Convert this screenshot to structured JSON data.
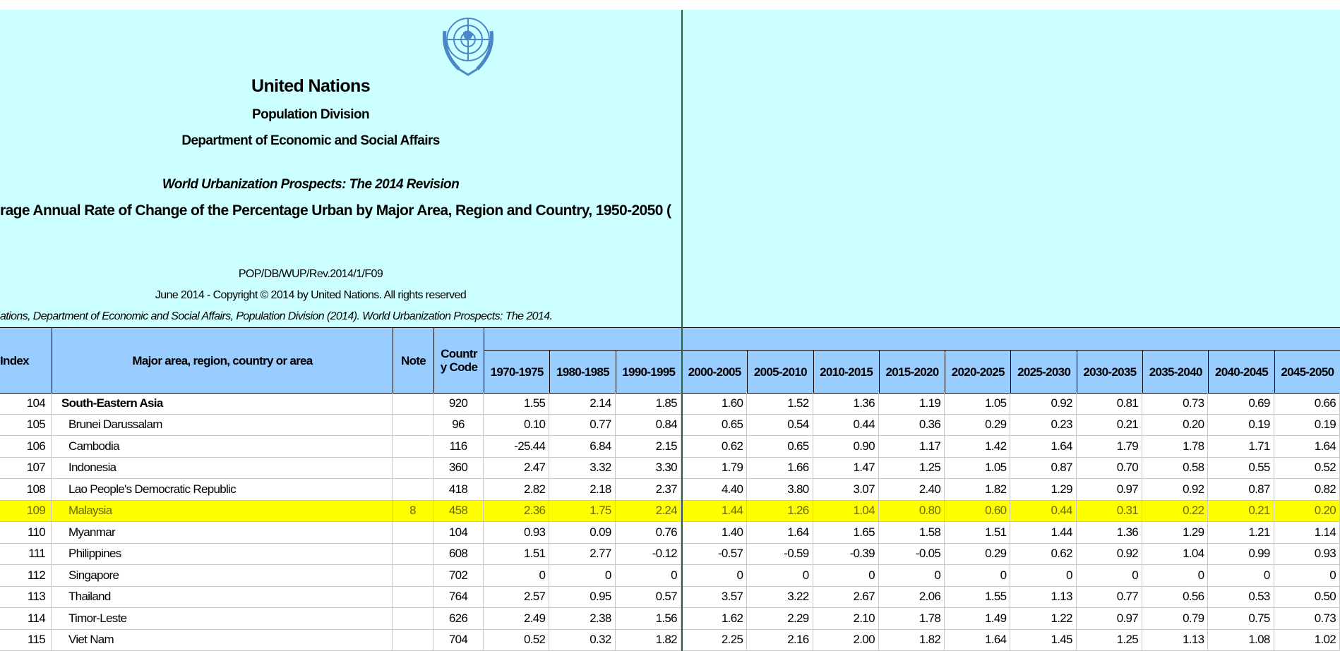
{
  "header": {
    "title": "United Nations",
    "division": "Population Division",
    "department": "Department of Economic and Social Affairs",
    "publication": "World Urbanization Prospects: The 2014 Revision",
    "table_title": "rage Annual Rate of Change of the Percentage Urban by Major Area, Region and Country, 1950-2050 (",
    "code": "POP/DB/WUP/Rev.2014/1/F09",
    "copyright": "June 2014 - Copyright © 2014 by United Nations. All rights reserved",
    "citation": "ations, Department of Economic and Social Affairs, Population Division (2014). World Urbanization Prospects: The 2014."
  },
  "table": {
    "columns": {
      "index": "Index",
      "name": "Major area, region, country or area",
      "note": "Note",
      "code": [
        "Countr",
        "y Code"
      ],
      "periods": [
        "1970-1975",
        "1980-1985",
        "1990-1995",
        "2000-2005",
        "2005-2010",
        "2010-2015",
        "2015-2020",
        "2020-2025",
        "2025-2030",
        "2030-2035",
        "2035-2040",
        "2040-2045",
        "2045-2050"
      ]
    },
    "rows": [
      {
        "index": "104",
        "name": "South-Eastern Asia",
        "code": "920",
        "values": [
          "1.55",
          "2.14",
          "1.85",
          "1.60",
          "1.52",
          "1.36",
          "1.19",
          "1.05",
          "0.92",
          "0.81",
          "0.73",
          "0.69",
          "0.66"
        ]
      },
      {
        "index": "105",
        "name": "Brunei Darussalam",
        "code": "96",
        "values": [
          "0.10",
          "0.77",
          "0.84",
          "0.65",
          "0.54",
          "0.44",
          "0.36",
          "0.29",
          "0.23",
          "0.21",
          "0.20",
          "0.19",
          "0.19"
        ]
      },
      {
        "index": "106",
        "name": "Cambodia",
        "code": "116",
        "values": [
          "-25.44",
          "6.84",
          "2.15",
          "0.62",
          "0.65",
          "0.90",
          "1.17",
          "1.42",
          "1.64",
          "1.79",
          "1.78",
          "1.71",
          "1.64"
        ]
      },
      {
        "index": "107",
        "name": "Indonesia",
        "code": "360",
        "values": [
          "2.47",
          "3.32",
          "3.30",
          "1.79",
          "1.66",
          "1.47",
          "1.25",
          "1.05",
          "0.87",
          "0.70",
          "0.58",
          "0.55",
          "0.52"
        ]
      },
      {
        "index": "108",
        "name": "Lao People's Democratic Republic",
        "code": "418",
        "values": [
          "2.82",
          "2.18",
          "2.37",
          "4.40",
          "3.80",
          "3.07",
          "2.40",
          "1.82",
          "1.29",
          "0.97",
          "0.92",
          "0.87",
          "0.82"
        ]
      },
      {
        "index": "109",
        "name": "Malaysia",
        "note": "8",
        "code": "458",
        "values": [
          "2.36",
          "1.75",
          "2.24",
          "1.44",
          "1.26",
          "1.04",
          "0.80",
          "0.60",
          "0.44",
          "0.31",
          "0.22",
          "0.21",
          "0.20"
        ]
      },
      {
        "index": "110",
        "name": "Myanmar",
        "code": "104",
        "values": [
          "0.93",
          "0.09",
          "0.76",
          "1.40",
          "1.64",
          "1.65",
          "1.58",
          "1.51",
          "1.44",
          "1.36",
          "1.29",
          "1.21",
          "1.14"
        ]
      },
      {
        "index": "111",
        "name": "Philippines",
        "code": "608",
        "values": [
          "1.51",
          "2.77",
          "-0.12",
          "-0.57",
          "-0.59",
          "-0.39",
          "-0.05",
          "0.29",
          "0.62",
          "0.92",
          "1.04",
          "0.99",
          "0.93"
        ]
      },
      {
        "index": "112",
        "name": "Singapore",
        "code": "702",
        "values": [
          "0",
          "0",
          "0",
          "0",
          "0",
          "0",
          "0",
          "0",
          "0",
          "0",
          "0",
          "0",
          "0"
        ]
      },
      {
        "index": "113",
        "name": "Thailand",
        "code": "764",
        "values": [
          "2.57",
          "0.95",
          "0.57",
          "3.57",
          "3.22",
          "2.67",
          "2.06",
          "1.55",
          "1.13",
          "0.77",
          "0.56",
          "0.53",
          "0.50"
        ]
      },
      {
        "index": "114",
        "name": "Timor-Leste",
        "code": "626",
        "values": [
          "2.49",
          "2.38",
          "1.56",
          "1.62",
          "2.29",
          "2.10",
          "1.78",
          "1.49",
          "1.22",
          "0.97",
          "0.79",
          "0.75",
          "0.73"
        ]
      },
      {
        "index": "115",
        "name": "Viet Nam",
        "code": "704",
        "values": [
          "0.52",
          "0.32",
          "1.82",
          "2.25",
          "2.16",
          "2.00",
          "1.82",
          "1.64",
          "1.45",
          "1.25",
          "1.13",
          "1.08",
          "1.02"
        ]
      }
    ]
  }
}
